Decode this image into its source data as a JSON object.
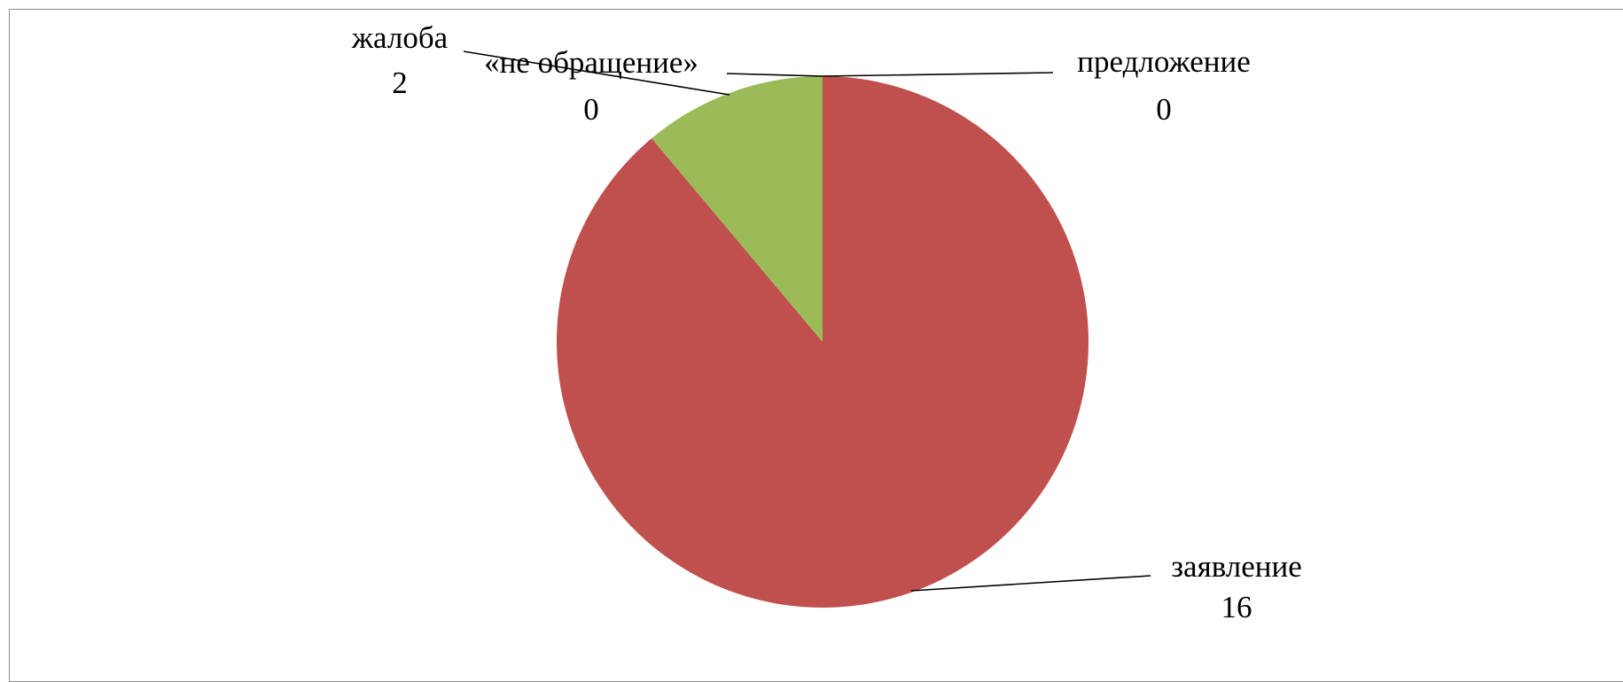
{
  "chart_data": {
    "type": "pie",
    "categories": [
      "предложение",
      "заявление",
      "жалоба",
      "«не обращение»"
    ],
    "values": [
      0,
      16,
      2,
      0
    ],
    "data_labels": [
      {
        "category": "предложение",
        "value": "0"
      },
      {
        "category": "заявление",
        "value": "16"
      },
      {
        "category": "жалоба",
        "value": "2"
      },
      {
        "category": "«не обращение»",
        "value": "0"
      }
    ],
    "colors": [
      "#4f81bd",
      "#c0504d",
      "#9bbb59",
      "#8064a2"
    ],
    "start_angle": "12 o'clock",
    "direction": "clockwise",
    "legend": "none"
  }
}
